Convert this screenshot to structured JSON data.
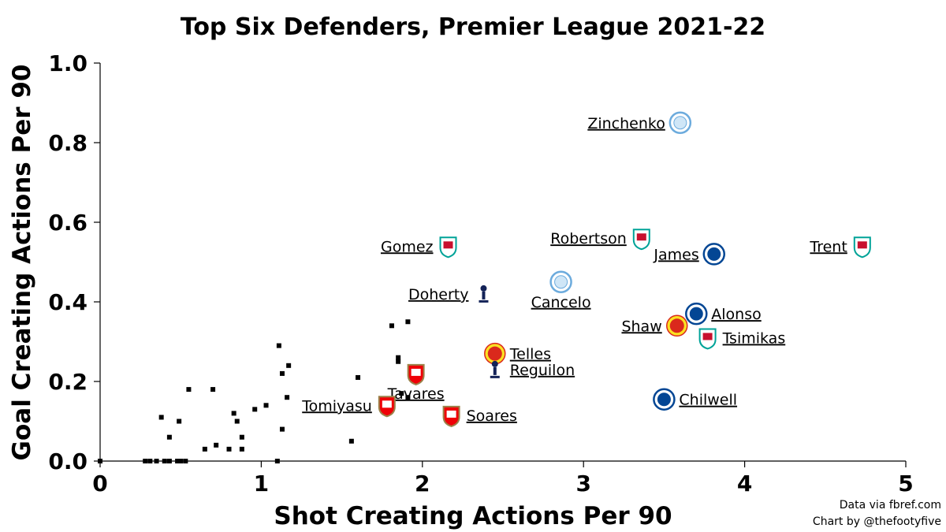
{
  "chart_data": {
    "type": "scatter",
    "title": "Top Six Defenders, Premier League 2021-22",
    "xlabel": "Shot Creating Actions Per 90",
    "ylabel": "Goal Creating Actions Per 90",
    "xlim": [
      0,
      5
    ],
    "ylim": [
      0,
      1.0
    ],
    "x_ticks": [
      "0",
      "1",
      "2",
      "3",
      "4",
      "5"
    ],
    "y_ticks": [
      "0.0",
      "0.2",
      "0.4",
      "0.6",
      "0.8",
      "1.0"
    ],
    "grid": false,
    "labeled_points": [
      {
        "label": "Zinchenko",
        "x": 3.6,
        "y": 0.85,
        "club": "Manchester City",
        "label_side": "left"
      },
      {
        "label": "Robertson",
        "x": 3.36,
        "y": 0.56,
        "club": "Liverpool",
        "label_side": "left"
      },
      {
        "label": "Gomez",
        "x": 2.16,
        "y": 0.54,
        "club": "Liverpool",
        "label_side": "left"
      },
      {
        "label": "Trent",
        "x": 4.73,
        "y": 0.54,
        "club": "Liverpool",
        "label_side": "left"
      },
      {
        "label": "James",
        "x": 3.81,
        "y": 0.52,
        "club": "Chelsea",
        "label_side": "left"
      },
      {
        "label": "Cancelo",
        "x": 2.86,
        "y": 0.45,
        "club": "Manchester City",
        "label_side": "below"
      },
      {
        "label": "Doherty",
        "x": 2.38,
        "y": 0.42,
        "club": "Tottenham",
        "label_side": "left"
      },
      {
        "label": "Alonso",
        "x": 3.7,
        "y": 0.37,
        "club": "Chelsea",
        "label_side": "right"
      },
      {
        "label": "Shaw",
        "x": 3.58,
        "y": 0.34,
        "club": "Manchester United",
        "label_side": "left"
      },
      {
        "label": "Tsimikas",
        "x": 3.77,
        "y": 0.31,
        "club": "Liverpool",
        "label_side": "right"
      },
      {
        "label": "Telles",
        "x": 2.45,
        "y": 0.27,
        "club": "Manchester United",
        "label_side": "right"
      },
      {
        "label": "Reguilon",
        "x": 2.45,
        "y": 0.23,
        "club": "Tottenham",
        "label_side": "right"
      },
      {
        "label": "Tavares",
        "x": 1.96,
        "y": 0.22,
        "club": "Arsenal",
        "label_side": "below"
      },
      {
        "label": "Tomiyasu",
        "x": 1.78,
        "y": 0.14,
        "club": "Arsenal",
        "label_side": "left"
      },
      {
        "label": "Soares",
        "x": 2.18,
        "y": 0.115,
        "club": "Arsenal",
        "label_side": "right"
      },
      {
        "label": "Chilwell",
        "x": 3.5,
        "y": 0.155,
        "club": "Chelsea",
        "label_side": "right"
      }
    ],
    "other_points": [
      {
        "x": 0.0,
        "y": 0.0
      },
      {
        "x": 0.28,
        "y": 0.0
      },
      {
        "x": 0.31,
        "y": 0.0
      },
      {
        "x": 0.35,
        "y": 0.0
      },
      {
        "x": 0.4,
        "y": 0.0
      },
      {
        "x": 0.43,
        "y": 0.0
      },
      {
        "x": 0.48,
        "y": 0.0
      },
      {
        "x": 0.5,
        "y": 0.0
      },
      {
        "x": 0.53,
        "y": 0.0
      },
      {
        "x": 1.1,
        "y": 0.0
      },
      {
        "x": 0.38,
        "y": 0.11
      },
      {
        "x": 0.43,
        "y": 0.06
      },
      {
        "x": 0.49,
        "y": 0.1
      },
      {
        "x": 0.55,
        "y": 0.18
      },
      {
        "x": 0.65,
        "y": 0.03
      },
      {
        "x": 0.7,
        "y": 0.18
      },
      {
        "x": 0.72,
        "y": 0.04
      },
      {
        "x": 0.8,
        "y": 0.03
      },
      {
        "x": 0.83,
        "y": 0.12
      },
      {
        "x": 0.85,
        "y": 0.1
      },
      {
        "x": 0.88,
        "y": 0.06
      },
      {
        "x": 0.88,
        "y": 0.03
      },
      {
        "x": 0.96,
        "y": 0.13
      },
      {
        "x": 1.03,
        "y": 0.14
      },
      {
        "x": 1.11,
        "y": 0.29
      },
      {
        "x": 1.13,
        "y": 0.22
      },
      {
        "x": 1.13,
        "y": 0.08
      },
      {
        "x": 1.16,
        "y": 0.16
      },
      {
        "x": 1.17,
        "y": 0.24
      },
      {
        "x": 1.56,
        "y": 0.05
      },
      {
        "x": 1.6,
        "y": 0.21
      },
      {
        "x": 1.81,
        "y": 0.34
      },
      {
        "x": 1.85,
        "y": 0.25
      },
      {
        "x": 1.85,
        "y": 0.26
      },
      {
        "x": 1.87,
        "y": 0.17
      },
      {
        "x": 1.91,
        "y": 0.16
      },
      {
        "x": 1.91,
        "y": 0.35
      }
    ]
  },
  "credits": {
    "line1": "Data via fbref.com",
    "line2": "Chart by @thefootyfive"
  },
  "club_colors": {
    "Manchester City": "#6cabdd",
    "Liverpool": "#c8102e",
    "Chelsea": "#034694",
    "Tottenham": "#132257",
    "Manchester United": "#da291c",
    "Arsenal": "#ef0107"
  }
}
